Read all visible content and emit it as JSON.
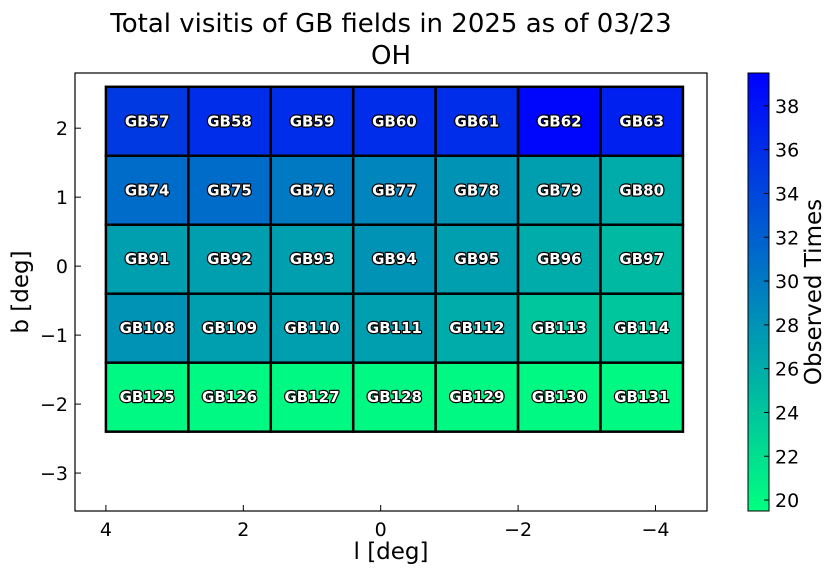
{
  "chart_data": {
    "type": "heatmap",
    "title": "Total visitis of GB fields in 2025 as of 03/23",
    "subtitle": "OH",
    "xlabel": "l [deg]",
    "ylabel": "b [deg]",
    "colorbar_label": "Observed Times",
    "xlim": [
      4.45,
      -4.75
    ],
    "ylim": [
      -3.55,
      2.8
    ],
    "xticks": [
      {
        "value": 4,
        "label": "4"
      },
      {
        "value": 2,
        "label": "2"
      },
      {
        "value": 0,
        "label": "0"
      },
      {
        "value": -2,
        "label": "−2"
      },
      {
        "value": -4,
        "label": "−4"
      }
    ],
    "yticks": [
      {
        "value": 2,
        "label": "2"
      },
      {
        "value": 1,
        "label": "1"
      },
      {
        "value": 0,
        "label": "0"
      },
      {
        "value": -1,
        "label": "−1"
      },
      {
        "value": -2,
        "label": "−2"
      },
      {
        "value": -3,
        "label": "−3"
      }
    ],
    "column_edges_l": [
      4.0,
      2.8,
      1.6,
      0.4,
      -0.8,
      -2.0,
      -3.2,
      -4.4
    ],
    "row_edges_b": [
      2.6,
      1.6,
      0.6,
      -0.4,
      -1.4,
      -2.4
    ],
    "cells": [
      [
        "GB57",
        "GB58",
        "GB59",
        "GB60",
        "GB61",
        "GB62",
        "GB63"
      ],
      [
        "GB74",
        "GB75",
        "GB76",
        "GB77",
        "GB78",
        "GB79",
        "GB80"
      ],
      [
        "GB91",
        "GB92",
        "GB93",
        "GB94",
        "GB95",
        "GB96",
        "GB97"
      ],
      [
        "GB108",
        "GB109",
        "GB110",
        "GB111",
        "GB112",
        "GB113",
        "GB114"
      ],
      [
        "GB125",
        "GB126",
        "GB127",
        "GB128",
        "GB129",
        "GB130",
        "GB131"
      ]
    ],
    "values": [
      [
        35,
        36,
        36,
        36,
        36,
        39,
        37
      ],
      [
        31,
        31,
        30,
        29,
        28,
        27,
        26
      ],
      [
        27,
        27,
        27,
        28,
        27,
        26,
        25
      ],
      [
        28,
        27,
        27,
        27,
        26,
        24,
        24
      ],
      [
        20,
        20,
        20,
        20,
        20,
        20,
        20
      ]
    ],
    "colorbar": {
      "min": 19.5,
      "max": 39.5,
      "ticks": [
        20,
        22,
        24,
        26,
        28,
        30,
        32,
        34,
        36,
        38
      ],
      "color_low": "#00ff80",
      "color_high": "#0000ff"
    },
    "grid": false
  }
}
